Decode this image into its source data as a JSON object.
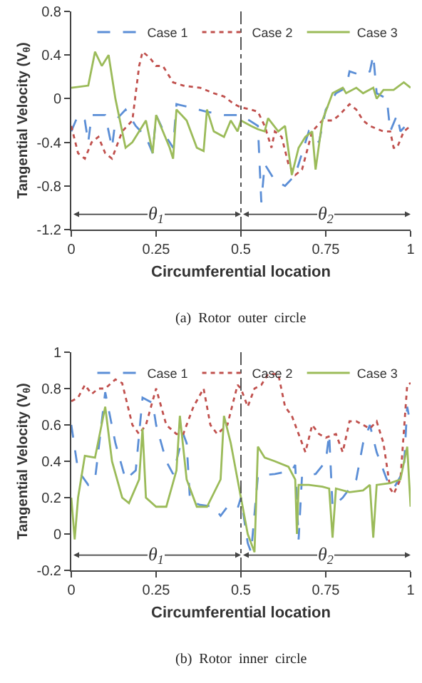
{
  "chart_data": [
    {
      "type": "line",
      "xlabel": "Circumferential location",
      "ylabel": "Tangential Velocity (V$_{θ}$)",
      "xlim": [
        0,
        1
      ],
      "xticks": [
        0,
        0.25,
        0.5,
        0.75,
        1
      ],
      "ylim": [
        -1.2,
        0.8
      ],
      "yticks": [
        -1.2,
        -0.8,
        -0.4,
        0,
        0.4,
        0.8
      ],
      "grid": false,
      "legend": "top",
      "marker": "none",
      "ref_lines": [
        {
          "axis": "x",
          "value": 0.5,
          "line_style": "dashed",
          "color": "#555555"
        }
      ],
      "annotations": [
        "θ$_{1}$",
        "θ$_{2}$",
        "(a)  Rotor  outer  circle"
      ],
      "series": [
        {
          "name": "Case 1",
          "color": "#5b8ed6",
          "line_style": "dashed",
          "x": [
            0,
            0.02,
            0.04,
            0.05,
            0.06,
            0.1,
            0.12,
            0.13,
            0.16,
            0.19,
            0.22,
            0.24,
            0.25,
            0.28,
            0.3,
            0.31,
            0.35,
            0.4,
            0.45,
            0.5,
            0.55,
            0.56,
            0.57,
            0.6,
            0.63,
            0.66,
            0.7,
            0.73,
            0.75,
            0.78,
            0.81,
            0.82,
            0.85,
            0.88,
            0.89,
            0.9,
            0.93,
            0.94,
            0.96,
            0.97,
            1.0
          ],
          "values": [
            -0.3,
            -0.15,
            -0.2,
            -0.4,
            -0.15,
            -0.15,
            -0.45,
            -0.2,
            -0.1,
            -0.25,
            -0.35,
            -0.5,
            -0.15,
            -0.35,
            -0.45,
            -0.05,
            -0.08,
            -0.12,
            -0.15,
            -0.15,
            -0.25,
            -0.95,
            -0.6,
            -0.75,
            -0.8,
            -0.7,
            -0.3,
            -0.4,
            -0.1,
            0.05,
            0.1,
            0.25,
            0.22,
            0.25,
            0.4,
            0.05,
            0.0,
            -0.3,
            -0.15,
            -0.3,
            -0.2
          ]
        },
        {
          "name": "Case 2",
          "color": "#c0504d",
          "line_style": "dotted",
          "x": [
            0,
            0.02,
            0.04,
            0.06,
            0.08,
            0.1,
            0.12,
            0.15,
            0.18,
            0.2,
            0.21,
            0.23,
            0.25,
            0.27,
            0.3,
            0.33,
            0.38,
            0.42,
            0.45,
            0.48,
            0.5,
            0.53,
            0.55,
            0.57,
            0.59,
            0.6,
            0.62,
            0.64,
            0.66,
            0.68,
            0.71,
            0.74,
            0.77,
            0.79,
            0.82,
            0.84,
            0.86,
            0.88,
            0.92,
            0.94,
            0.95,
            0.96,
            0.98,
            1.0
          ],
          "values": [
            -0.25,
            -0.5,
            -0.55,
            -0.4,
            -0.35,
            -0.5,
            -0.55,
            -0.3,
            -0.2,
            0.3,
            0.43,
            0.38,
            0.3,
            0.3,
            0.15,
            0.12,
            0.1,
            0.05,
            0.02,
            -0.05,
            -0.08,
            -0.1,
            -0.12,
            -0.25,
            -0.45,
            -0.3,
            -0.35,
            -0.6,
            -0.7,
            -0.65,
            -0.3,
            -0.2,
            -0.2,
            -0.15,
            -0.05,
            -0.1,
            -0.2,
            -0.25,
            -0.3,
            -0.3,
            -0.45,
            -0.45,
            -0.3,
            -0.25
          ]
        },
        {
          "name": "Case 3",
          "color": "#9bbb59",
          "line_style": "solid",
          "x": [
            0,
            0.05,
            0.07,
            0.09,
            0.11,
            0.13,
            0.15,
            0.16,
            0.18,
            0.2,
            0.22,
            0.24,
            0.25,
            0.27,
            0.29,
            0.3,
            0.31,
            0.34,
            0.37,
            0.39,
            0.4,
            0.42,
            0.45,
            0.47,
            0.49,
            0.5,
            0.53,
            0.55,
            0.57,
            0.58,
            0.61,
            0.63,
            0.65,
            0.67,
            0.69,
            0.71,
            0.72,
            0.74,
            0.77,
            0.8,
            0.81,
            0.84,
            0.86,
            0.89,
            0.9,
            0.92,
            0.95,
            0.98,
            1.0
          ],
          "values": [
            0.1,
            0.12,
            0.43,
            0.3,
            0.4,
            0.0,
            -0.3,
            -0.45,
            -0.4,
            -0.3,
            -0.2,
            -0.5,
            -0.15,
            -0.3,
            -0.45,
            -0.55,
            -0.1,
            -0.2,
            -0.45,
            -0.48,
            -0.1,
            -0.3,
            -0.35,
            -0.2,
            -0.3,
            -0.2,
            -0.25,
            -0.28,
            -0.3,
            -0.18,
            -0.3,
            -0.25,
            -0.7,
            -0.45,
            -0.35,
            -0.3,
            -0.65,
            -0.2,
            0.05,
            0.1,
            0.05,
            0.1,
            0.05,
            0.1,
            0.0,
            0.08,
            0.08,
            0.15,
            0.1
          ]
        }
      ]
    },
    {
      "type": "line",
      "xlabel": "Circumferential location",
      "ylabel": "Tangential Velocity (V$_{θ}$)",
      "xlim": [
        0,
        1
      ],
      "xticks": [
        0,
        0.25,
        0.5,
        0.75,
        1
      ],
      "ylim": [
        -0.2,
        1
      ],
      "yticks": [
        -0.2,
        0,
        0.2,
        0.4,
        0.6,
        0.8,
        1
      ],
      "grid": false,
      "legend": "top",
      "marker": "none",
      "ref_lines": [
        {
          "axis": "x",
          "value": 0.5,
          "line_style": "dashed",
          "color": "#555555"
        }
      ],
      "annotations": [
        "θ$_{1}$",
        "θ$_{2}$",
        "(b)  Rotor  inner  circle"
      ],
      "series": [
        {
          "name": "Case 1",
          "color": "#5b8ed6",
          "line_style": "dashed",
          "x": [
            0,
            0.02,
            0.05,
            0.07,
            0.1,
            0.13,
            0.16,
            0.19,
            0.21,
            0.24,
            0.25,
            0.28,
            0.3,
            0.33,
            0.34,
            0.35,
            0.38,
            0.42,
            0.44,
            0.46,
            0.49,
            0.5,
            0.52,
            0.53,
            0.55,
            0.6,
            0.65,
            0.66,
            0.67,
            0.68,
            0.72,
            0.75,
            0.76,
            0.77,
            0.8,
            0.84,
            0.86,
            0.88,
            0.9,
            0.93,
            0.95,
            0.98,
            0.99,
            1.0
          ],
          "values": [
            0.6,
            0.35,
            0.27,
            0.3,
            0.78,
            0.5,
            0.3,
            0.35,
            0.75,
            0.72,
            0.6,
            0.4,
            0.33,
            0.55,
            0.5,
            0.18,
            0.16,
            0.15,
            0.1,
            0.15,
            0.14,
            0.2,
            -0.05,
            -0.1,
            0.32,
            0.33,
            0.35,
            0.38,
            -0.03,
            0.32,
            0.33,
            0.4,
            0.55,
            0.15,
            0.2,
            0.3,
            0.5,
            0.6,
            0.45,
            0.3,
            0.25,
            0.35,
            0.7,
            0.6
          ]
        },
        {
          "name": "Case 2",
          "color": "#c0504d",
          "line_style": "dotted",
          "x": [
            0,
            0.02,
            0.04,
            0.06,
            0.08,
            0.1,
            0.13,
            0.15,
            0.18,
            0.2,
            0.22,
            0.25,
            0.28,
            0.31,
            0.33,
            0.36,
            0.39,
            0.41,
            0.43,
            0.46,
            0.49,
            0.5,
            0.52,
            0.54,
            0.56,
            0.58,
            0.61,
            0.63,
            0.65,
            0.67,
            0.69,
            0.71,
            0.73,
            0.75,
            0.78,
            0.8,
            0.82,
            0.84,
            0.86,
            0.88,
            0.9,
            0.92,
            0.94,
            0.95,
            0.97,
            0.99,
            1.0
          ],
          "values": [
            0.73,
            0.75,
            0.82,
            0.77,
            0.8,
            0.8,
            0.85,
            0.83,
            0.6,
            0.55,
            0.6,
            0.8,
            0.6,
            0.55,
            0.55,
            0.7,
            0.8,
            0.6,
            0.55,
            0.6,
            0.82,
            0.8,
            0.7,
            0.8,
            0.82,
            0.88,
            0.88,
            0.7,
            0.65,
            0.55,
            0.45,
            0.6,
            0.55,
            0.53,
            0.55,
            0.45,
            0.62,
            0.62,
            0.6,
            0.58,
            0.62,
            0.5,
            0.25,
            0.22,
            0.3,
            0.82,
            0.83
          ]
        },
        {
          "name": "Case 3",
          "color": "#9bbb59",
          "line_style": "solid",
          "x": [
            0,
            0.01,
            0.02,
            0.04,
            0.07,
            0.1,
            0.12,
            0.15,
            0.17,
            0.2,
            0.21,
            0.22,
            0.25,
            0.28,
            0.31,
            0.32,
            0.34,
            0.37,
            0.4,
            0.44,
            0.45,
            0.47,
            0.5,
            0.52,
            0.54,
            0.55,
            0.57,
            0.6,
            0.64,
            0.66,
            0.665,
            0.67,
            0.7,
            0.74,
            0.76,
            0.77,
            0.78,
            0.82,
            0.86,
            0.88,
            0.89,
            0.9,
            0.94,
            0.97,
            0.99,
            1.0
          ],
          "values": [
            0.2,
            -0.03,
            0.2,
            0.43,
            0.42,
            0.7,
            0.4,
            0.2,
            0.17,
            0.3,
            0.58,
            0.2,
            0.15,
            0.15,
            0.35,
            0.65,
            0.3,
            0.15,
            0.15,
            0.3,
            0.65,
            0.5,
            0.2,
            0.0,
            -0.1,
            0.48,
            0.42,
            0.4,
            0.37,
            0.3,
            0.0,
            0.27,
            0.27,
            0.26,
            0.25,
            -0.02,
            0.25,
            0.23,
            0.24,
            0.27,
            -0.02,
            0.27,
            0.28,
            0.3,
            0.48,
            0.15
          ]
        }
      ]
    }
  ]
}
